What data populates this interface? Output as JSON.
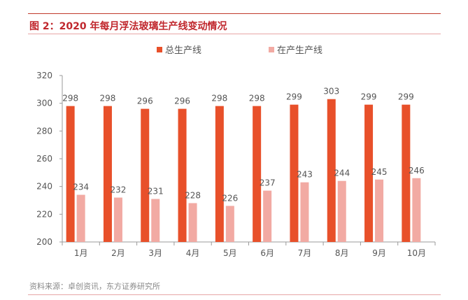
{
  "header": {
    "title": "图 2：2020 年每月浮法玻璃生产线变动情况"
  },
  "footer": {
    "source": "资料来源：卓创资讯，东方证券研究所"
  },
  "colors": {
    "accent": "#c0272d",
    "series_total": "#e8502a",
    "series_active": "#f2aaa3"
  },
  "chart_data": {
    "type": "bar",
    "categories": [
      "1月",
      "2月",
      "3月",
      "4月",
      "5月",
      "6月",
      "7月",
      "8月",
      "9月",
      "10月"
    ],
    "series": [
      {
        "name": "总生产线",
        "color": "#e8502a",
        "values": [
          298,
          298,
          296,
          296,
          298,
          298,
          299,
          303,
          299,
          299
        ]
      },
      {
        "name": "在产生产线",
        "color": "#f2aaa3",
        "values": [
          234,
          232,
          231,
          228,
          226,
          237,
          243,
          244,
          245,
          246
        ]
      }
    ],
    "ylim": [
      200,
      320
    ],
    "yticks": [
      200,
      220,
      240,
      260,
      280,
      300,
      320
    ],
    "legend": "top",
    "grid": false,
    "data_labels": true
  }
}
